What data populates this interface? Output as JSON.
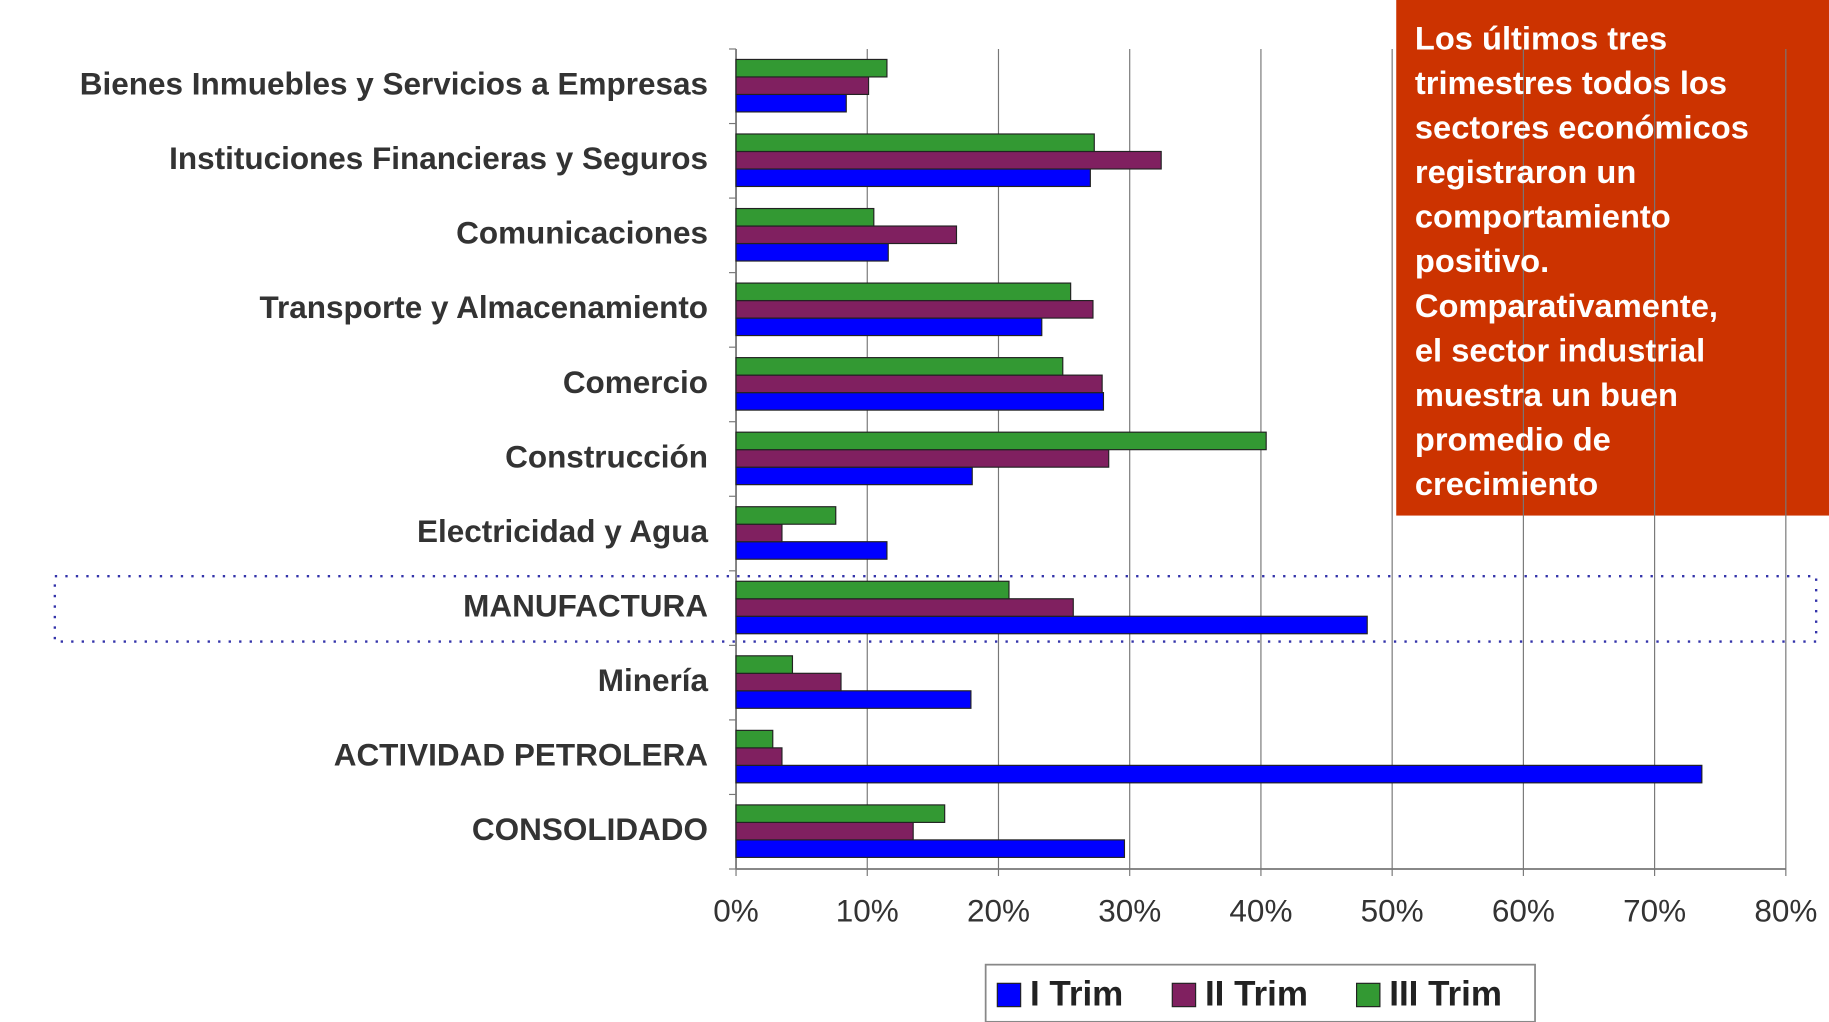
{
  "chart_data": {
    "type": "bar",
    "orientation": "horizontal",
    "categories": [
      "Bienes Inmuebles y Servicios a Empresas",
      "Instituciones Financieras y Seguros",
      "Comunicaciones",
      "Transporte y Almacenamiento",
      "Comercio",
      "Construcción",
      "Electricidad y Agua",
      "MANUFACTURA",
      "Minería",
      "ACTIVIDAD PETROLERA",
      "CONSOLIDADO"
    ],
    "series": [
      {
        "name": "I Trim",
        "color": "#0000ff",
        "values": [
          8.4,
          27.0,
          11.6,
          23.3,
          28.0,
          18.0,
          11.5,
          48.1,
          17.9,
          73.6,
          29.6
        ]
      },
      {
        "name": "II Trim",
        "color": "#802060",
        "values": [
          10.1,
          32.4,
          16.8,
          27.2,
          27.9,
          28.4,
          3.5,
          25.7,
          8.0,
          3.5,
          13.5
        ]
      },
      {
        "name": "III Trim",
        "color": "#339933",
        "values": [
          11.5,
          27.3,
          10.5,
          25.5,
          24.9,
          40.4,
          7.6,
          20.8,
          4.3,
          2.8,
          15.9
        ]
      }
    ],
    "xlim": [
      0,
      80
    ],
    "xticks": [
      {
        "value": 0,
        "label": "0%"
      },
      {
        "value": 10,
        "label": "10%"
      },
      {
        "value": 20,
        "label": "20%"
      },
      {
        "value": 30,
        "label": "30%"
      },
      {
        "value": 40,
        "label": "40%"
      },
      {
        "value": 50,
        "label": "50%"
      },
      {
        "value": 60,
        "label": "60%"
      },
      {
        "value": 70,
        "label": "70%"
      },
      {
        "value": 80,
        "label": "80%"
      }
    ],
    "grid": true,
    "legend": "bottom",
    "annotation": [
      "Los últimos tres",
      "trimestres todos los",
      "sectores económicos",
      "registraron un",
      "comportamiento",
      "positivo.",
      "Comparativamente,",
      "el sector industrial",
      "muestra un buen",
      "promedio de",
      "crecimiento"
    ]
  }
}
